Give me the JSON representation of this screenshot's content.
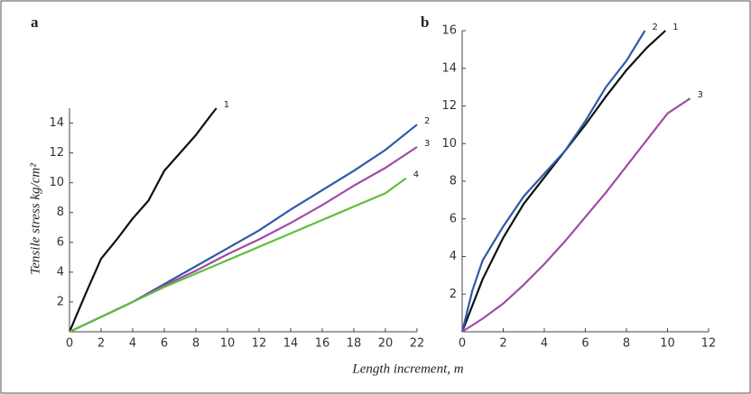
{
  "chart_data": [
    {
      "type": "line",
      "panel": "a",
      "ylabel": "Tensile stress kg/cm²",
      "xlabel": "Length increment, m",
      "xlim": [
        0,
        22
      ],
      "ylim": [
        0,
        15
      ],
      "xticks": [
        0,
        2,
        4,
        6,
        8,
        10,
        12,
        14,
        16,
        18,
        20,
        22
      ],
      "yticks": [
        2,
        4,
        6,
        8,
        10,
        12,
        14
      ],
      "series": [
        {
          "name": "1",
          "color": "#111111",
          "x": [
            0,
            1,
            2,
            3,
            4,
            5,
            6,
            7,
            8,
            9,
            9.3
          ],
          "values": [
            0,
            2.5,
            4.9,
            6.2,
            7.6,
            8.8,
            10.8,
            12,
            13.2,
            14.6,
            15
          ]
        },
        {
          "name": "2",
          "color": "#2f59a8",
          "x": [
            0,
            4,
            6,
            8,
            10,
            12,
            14,
            16,
            18,
            20,
            22
          ],
          "values": [
            0,
            2,
            3.2,
            4.4,
            5.6,
            6.8,
            8.2,
            9.5,
            10.8,
            12.2,
            13.9
          ]
        },
        {
          "name": "3",
          "color": "#a24aa8",
          "x": [
            0,
            4,
            6,
            8,
            10,
            12,
            14,
            16,
            18,
            20,
            22
          ],
          "values": [
            0,
            2,
            3.1,
            4.1,
            5.2,
            6.2,
            7.3,
            8.5,
            9.8,
            11,
            12.4
          ]
        },
        {
          "name": "4",
          "color": "#5fbe3c",
          "x": [
            0,
            4,
            6,
            8,
            10,
            12,
            14,
            16,
            18,
            20,
            21.3
          ],
          "values": [
            0,
            2,
            3,
            3.9,
            4.8,
            5.7,
            6.6,
            7.5,
            8.4,
            9.3,
            10.3
          ]
        }
      ]
    },
    {
      "type": "line",
      "panel": "b",
      "xlim": [
        0,
        12
      ],
      "ylim": [
        0,
        16
      ],
      "xticks": [
        0,
        2,
        4,
        6,
        8,
        10,
        12
      ],
      "yticks": [
        2,
        4,
        6,
        8,
        10,
        12,
        14,
        16
      ],
      "series": [
        {
          "name": "1",
          "color": "#111111",
          "x": [
            0,
            1,
            2,
            3,
            4,
            5,
            6,
            7,
            8,
            9,
            9.9
          ],
          "values": [
            0,
            2.8,
            5,
            6.8,
            8.2,
            9.6,
            11,
            12.5,
            13.9,
            15.1,
            16
          ]
        },
        {
          "name": "2",
          "color": "#2f59a8",
          "x": [
            0,
            0.5,
            1,
            2,
            3,
            4,
            5,
            6,
            7,
            8,
            8.9
          ],
          "values": [
            0,
            2.2,
            3.8,
            5.6,
            7.2,
            8.4,
            9.6,
            11.2,
            13,
            14.4,
            16
          ]
        },
        {
          "name": "3",
          "color": "#a24aa8",
          "x": [
            0,
            1,
            2,
            3,
            4,
            5,
            6,
            7,
            8,
            9,
            10,
            11.1
          ],
          "values": [
            0,
            0.7,
            1.5,
            2.5,
            3.6,
            4.8,
            6.1,
            7.4,
            8.8,
            10.2,
            11.6,
            12.4
          ]
        }
      ]
    }
  ]
}
